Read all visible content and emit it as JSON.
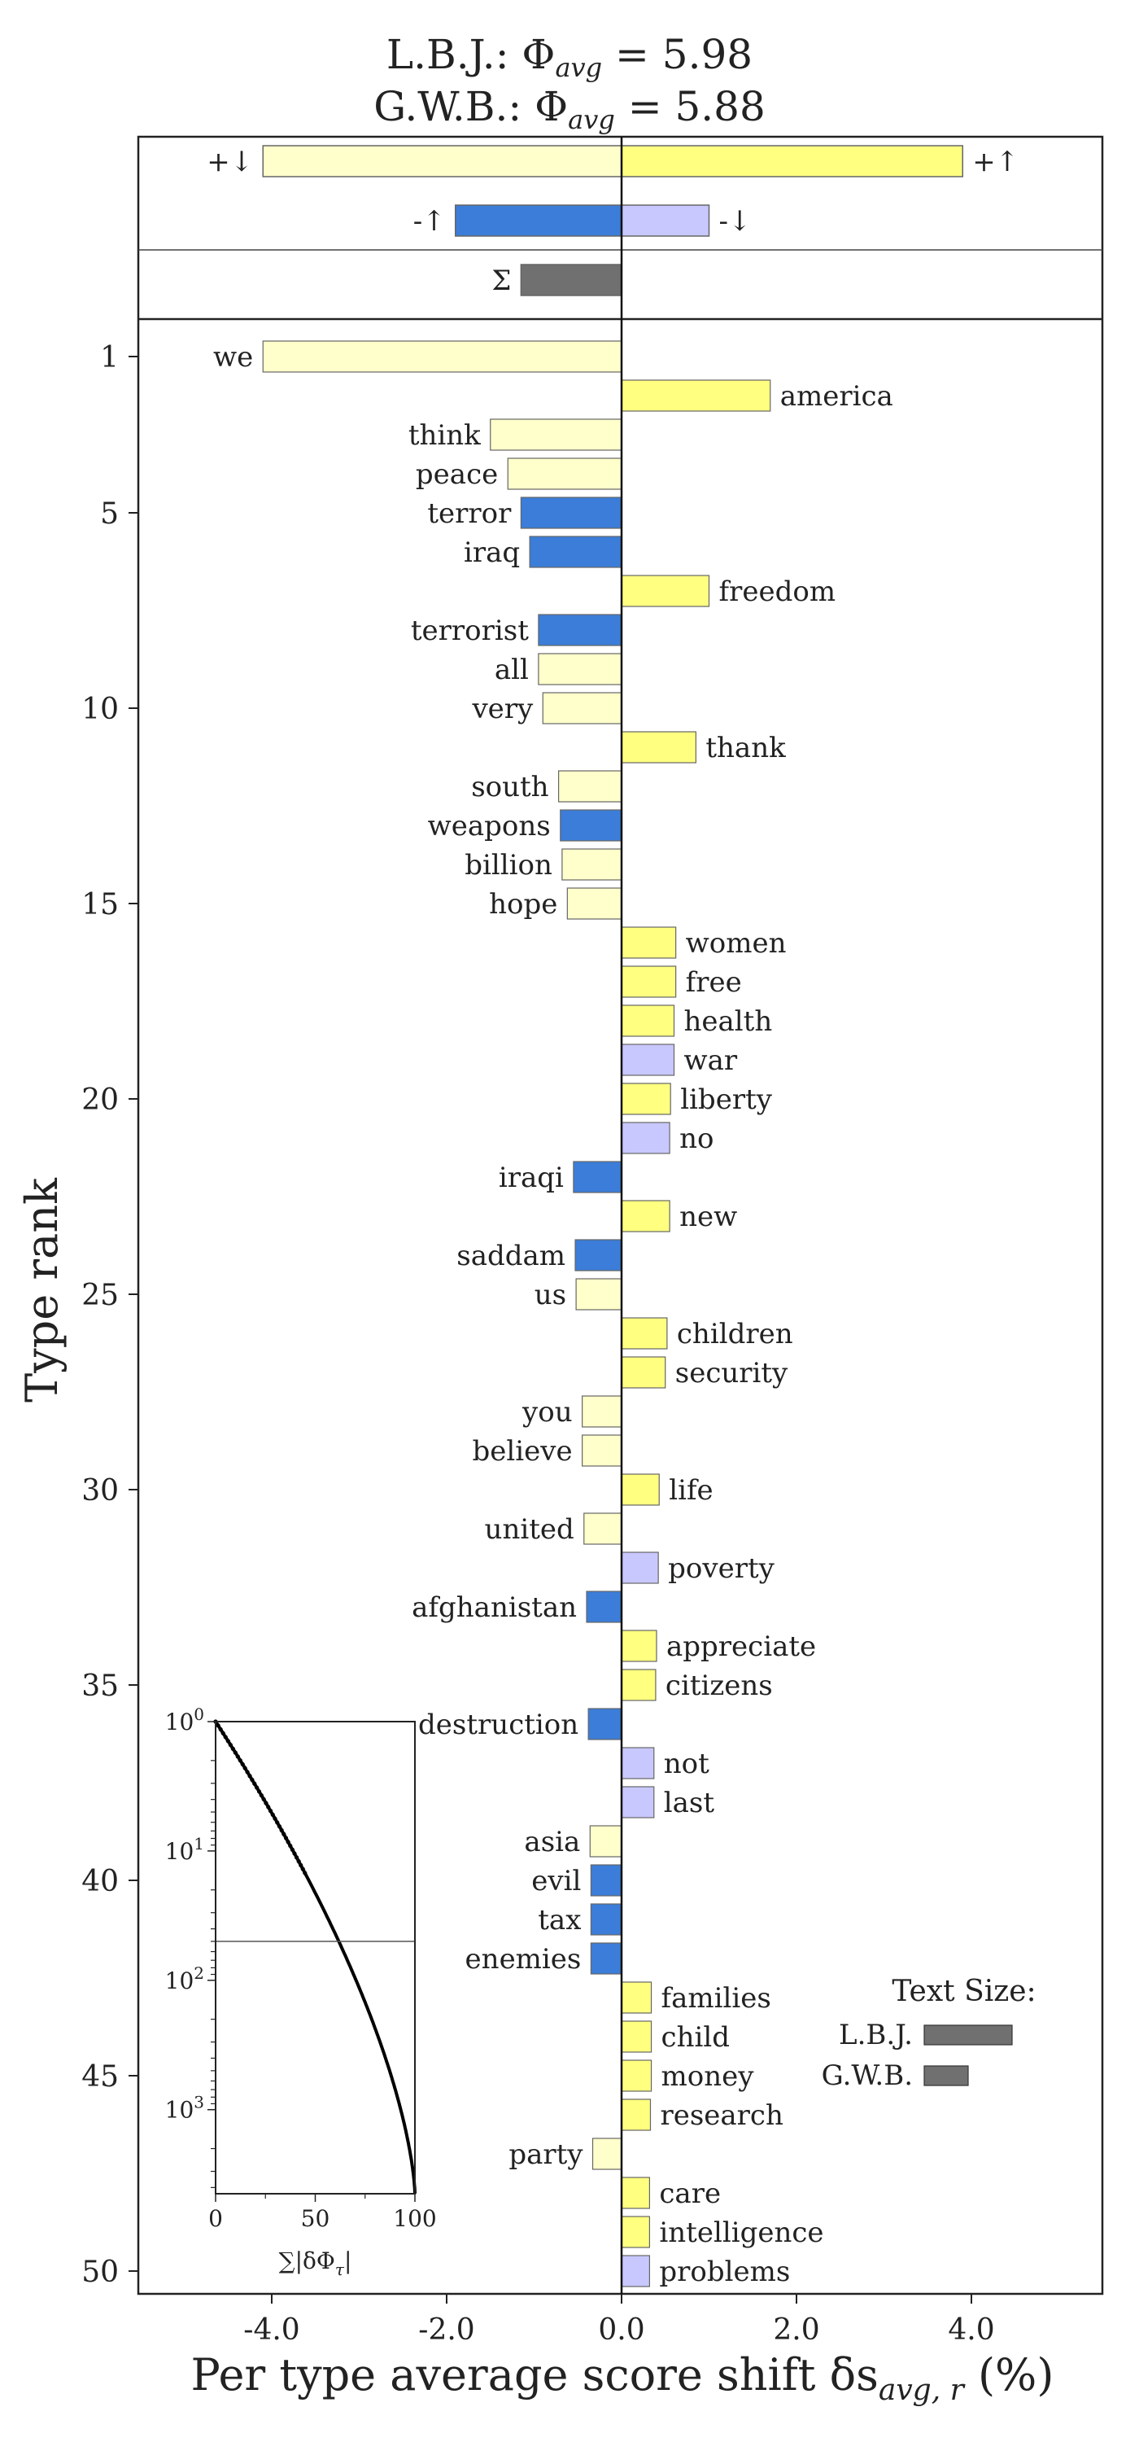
{
  "chart_data": {
    "type": "bar",
    "title_line1": "L.B.J.: Φ",
    "title_line1_sub": "avg",
    "title_line1_value": " = 5.98",
    "title_line2": "G.W.B.: Φ",
    "title_line2_sub": "avg",
    "title_line2_value": " = 5.88",
    "xlabel": "Per type average score shift δs",
    "xlabel_sub": "avg, r",
    "xlabel_unit": " (%)",
    "ylabel": "Type rank",
    "xlim": [
      -5.5,
      5.5
    ],
    "xticks": [
      -4.0,
      -2.0,
      0.0,
      2.0,
      4.0
    ],
    "xtick_labels": [
      "-4.0",
      "-2.0",
      "0.0",
      "2.0",
      "4.0"
    ],
    "yticks": [
      1,
      5,
      10,
      15,
      20,
      25,
      30,
      35,
      40,
      45,
      50
    ],
    "colors": {
      "pos_up": "#ffff80",
      "pos_down": "#ffffcc",
      "neg_up": "#3b7dd8",
      "neg_down": "#c8c8ff",
      "sum": "#707070"
    },
    "summary": {
      "labels": {
        "pos_down": "+↓",
        "pos_up": "+↑",
        "neg_up": "-↑",
        "neg_down": "-↓",
        "sum": "Σ"
      },
      "pos_down": -4.1,
      "pos_up": 3.9,
      "neg_up": -1.9,
      "neg_down": 1.0,
      "sum": -1.15
    },
    "words": [
      {
        "rank": 1,
        "word": "we",
        "value": -4.1,
        "type": "pos_down"
      },
      {
        "rank": 2,
        "word": "america",
        "value": 1.7,
        "type": "pos_up"
      },
      {
        "rank": 3,
        "word": "think",
        "value": -1.5,
        "type": "pos_down"
      },
      {
        "rank": 4,
        "word": "peace",
        "value": -1.3,
        "type": "pos_down"
      },
      {
        "rank": 5,
        "word": "terror",
        "value": -1.15,
        "type": "neg_up"
      },
      {
        "rank": 6,
        "word": "iraq",
        "value": -1.05,
        "type": "neg_up"
      },
      {
        "rank": 7,
        "word": "freedom",
        "value": 1.0,
        "type": "pos_up"
      },
      {
        "rank": 8,
        "word": "terrorist",
        "value": -0.95,
        "type": "neg_up"
      },
      {
        "rank": 9,
        "word": "all",
        "value": -0.95,
        "type": "pos_down"
      },
      {
        "rank": 10,
        "word": "very",
        "value": -0.9,
        "type": "pos_down"
      },
      {
        "rank": 11,
        "word": "thank",
        "value": 0.85,
        "type": "pos_up"
      },
      {
        "rank": 12,
        "word": "south",
        "value": -0.72,
        "type": "pos_down"
      },
      {
        "rank": 13,
        "word": "weapons",
        "value": -0.7,
        "type": "neg_up"
      },
      {
        "rank": 14,
        "word": "billion",
        "value": -0.68,
        "type": "pos_down"
      },
      {
        "rank": 15,
        "word": "hope",
        "value": -0.62,
        "type": "pos_down"
      },
      {
        "rank": 16,
        "word": "women",
        "value": 0.62,
        "type": "pos_up"
      },
      {
        "rank": 17,
        "word": "free",
        "value": 0.62,
        "type": "pos_up"
      },
      {
        "rank": 18,
        "word": "health",
        "value": 0.6,
        "type": "pos_up"
      },
      {
        "rank": 19,
        "word": "war",
        "value": 0.6,
        "type": "neg_down"
      },
      {
        "rank": 20,
        "word": "liberty",
        "value": 0.56,
        "type": "pos_up"
      },
      {
        "rank": 21,
        "word": "no",
        "value": 0.55,
        "type": "neg_down"
      },
      {
        "rank": 22,
        "word": "iraqi",
        "value": -0.55,
        "type": "neg_up"
      },
      {
        "rank": 23,
        "word": "new",
        "value": 0.55,
        "type": "pos_up"
      },
      {
        "rank": 24,
        "word": "saddam",
        "value": -0.53,
        "type": "neg_up"
      },
      {
        "rank": 25,
        "word": "us",
        "value": -0.52,
        "type": "pos_down"
      },
      {
        "rank": 26,
        "word": "children",
        "value": 0.52,
        "type": "pos_up"
      },
      {
        "rank": 27,
        "word": "security",
        "value": 0.5,
        "type": "pos_up"
      },
      {
        "rank": 28,
        "word": "you",
        "value": -0.45,
        "type": "pos_down"
      },
      {
        "rank": 29,
        "word": "believe",
        "value": -0.45,
        "type": "pos_down"
      },
      {
        "rank": 30,
        "word": "life",
        "value": 0.43,
        "type": "pos_up"
      },
      {
        "rank": 31,
        "word": "united",
        "value": -0.43,
        "type": "pos_down"
      },
      {
        "rank": 32,
        "word": "poverty",
        "value": 0.42,
        "type": "neg_down"
      },
      {
        "rank": 33,
        "word": "afghanistan",
        "value": -0.4,
        "type": "neg_up"
      },
      {
        "rank": 34,
        "word": "appreciate",
        "value": 0.4,
        "type": "pos_up"
      },
      {
        "rank": 35,
        "word": "citizens",
        "value": 0.39,
        "type": "pos_up"
      },
      {
        "rank": 36,
        "word": "destruction",
        "value": -0.38,
        "type": "neg_up"
      },
      {
        "rank": 37,
        "word": "not",
        "value": 0.37,
        "type": "neg_down"
      },
      {
        "rank": 38,
        "word": "last",
        "value": 0.37,
        "type": "neg_down"
      },
      {
        "rank": 39,
        "word": "asia",
        "value": -0.36,
        "type": "pos_down"
      },
      {
        "rank": 40,
        "word": "evil",
        "value": -0.35,
        "type": "neg_up"
      },
      {
        "rank": 41,
        "word": "tax",
        "value": -0.35,
        "type": "neg_up"
      },
      {
        "rank": 42,
        "word": "enemies",
        "value": -0.35,
        "type": "neg_up"
      },
      {
        "rank": 43,
        "word": "families",
        "value": 0.34,
        "type": "pos_up"
      },
      {
        "rank": 44,
        "word": "child",
        "value": 0.34,
        "type": "pos_up"
      },
      {
        "rank": 45,
        "word": "money",
        "value": 0.34,
        "type": "pos_up"
      },
      {
        "rank": 46,
        "word": "research",
        "value": 0.33,
        "type": "pos_up"
      },
      {
        "rank": 47,
        "word": "party",
        "value": -0.33,
        "type": "pos_down"
      },
      {
        "rank": 48,
        "word": "care",
        "value": 0.32,
        "type": "pos_up"
      },
      {
        "rank": 49,
        "word": "intelligence",
        "value": 0.32,
        "type": "pos_up"
      },
      {
        "rank": 50,
        "word": "problems",
        "value": 0.32,
        "type": "neg_down"
      }
    ],
    "legend": {
      "title": "Text Size:",
      "entries": [
        {
          "name": "L.B.J.",
          "size": 1.0
        },
        {
          "name": "G.W.B.",
          "size": 0.5
        }
      ]
    },
    "inset": {
      "xlabel": "∑|δΦ",
      "xlabel_sub": "τ",
      "xlabel_end": "|",
      "xlim": [
        0,
        100
      ],
      "xticks": [
        0,
        50,
        100
      ],
      "yticks": [
        {
          "base": "10",
          "exp": "0"
        },
        {
          "base": "10",
          "exp": "1"
        },
        {
          "base": "10",
          "exp": "2"
        },
        {
          "base": "10",
          "exp": "3"
        }
      ],
      "yscale": "log",
      "hline_rank": 50
    }
  }
}
